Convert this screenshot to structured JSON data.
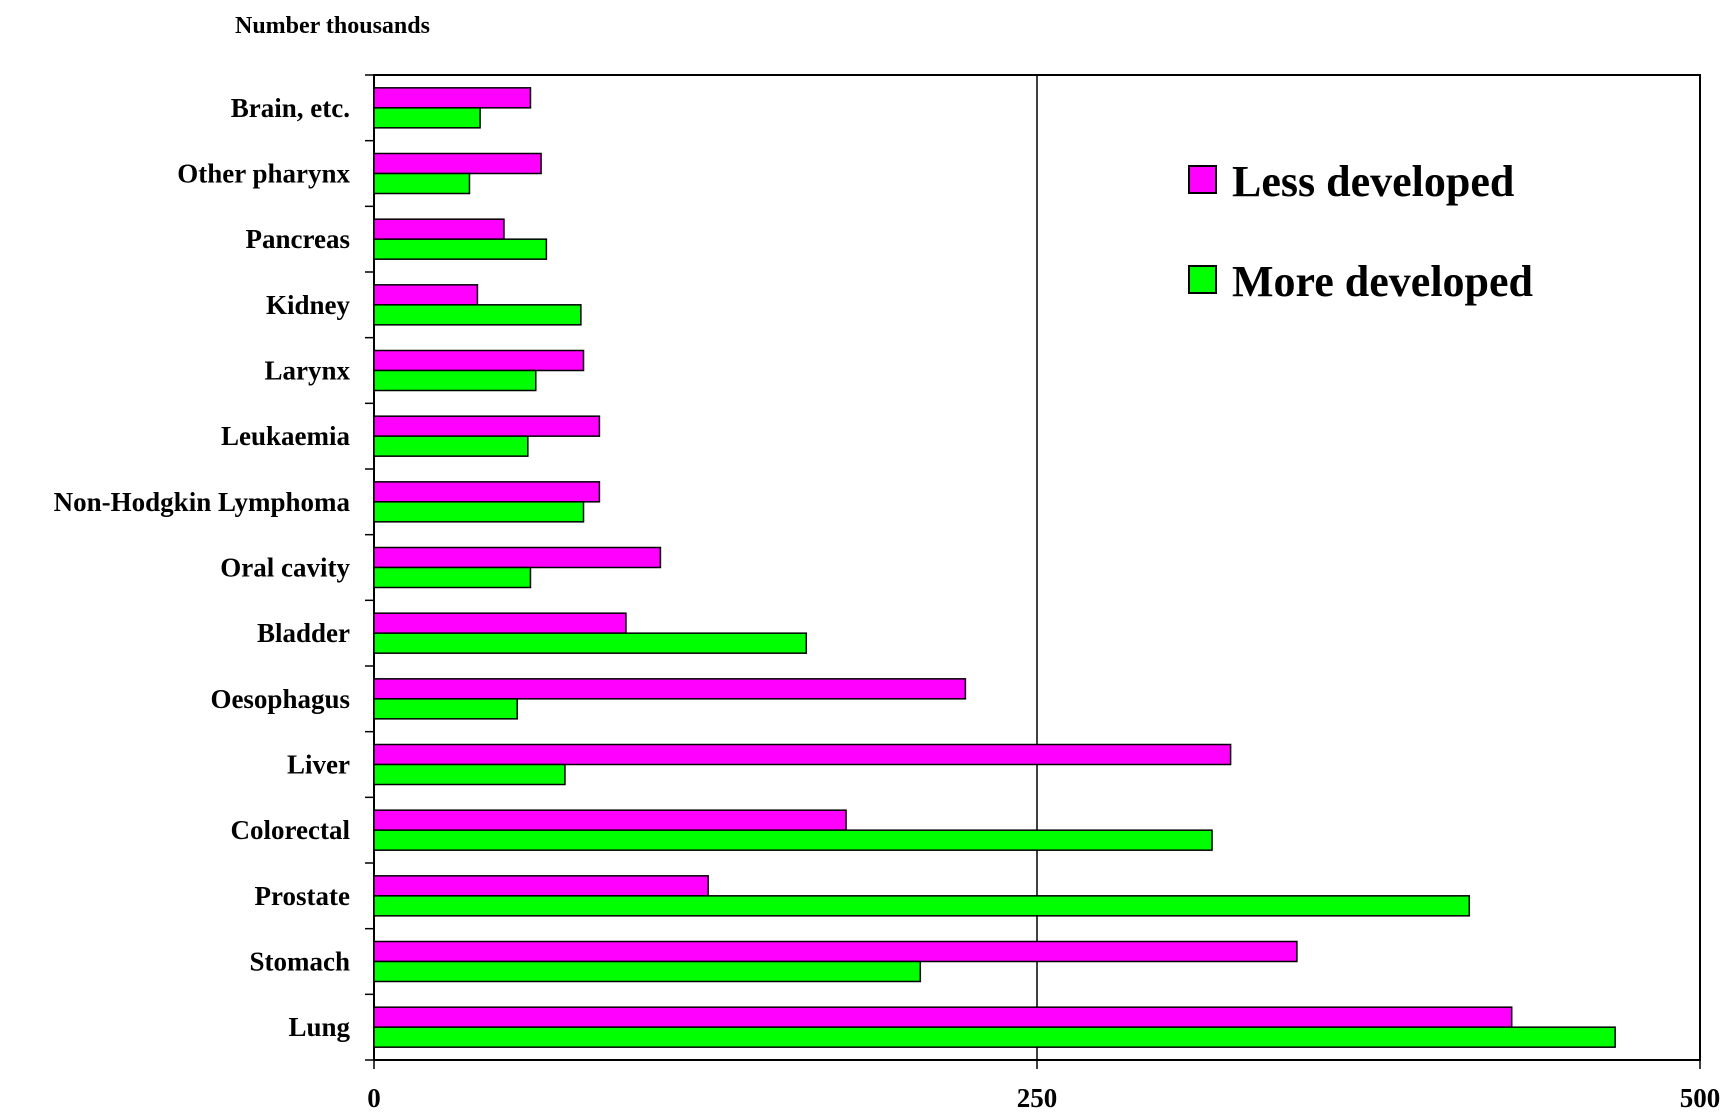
{
  "chart_data": {
    "type": "bar",
    "orientation": "horizontal",
    "unit_label": "Number thousands",
    "categories": [
      "Brain, etc.",
      "Other pharynx",
      "Pancreas",
      "Kidney",
      "Larynx",
      "Leukaemia",
      "Non-Hodgkin Lymphoma",
      "Oral cavity",
      "Bladder",
      "Oesophagus",
      "Liver",
      "Colorectal",
      "Prostate",
      "Stomach",
      "Lung"
    ],
    "series": [
      {
        "name": "Less developed",
        "color": "#ff00ff",
        "values": [
          59,
          63,
          49,
          39,
          79,
          85,
          85,
          108,
          95,
          223,
          323,
          178,
          126,
          348,
          429
        ]
      },
      {
        "name": "More developed",
        "color": "#00ff00",
        "values": [
          40,
          36,
          65,
          78,
          61,
          58,
          79,
          59,
          163,
          54,
          72,
          316,
          413,
          206,
          468
        ]
      }
    ],
    "xlim": [
      0,
      500
    ],
    "xticks": [
      "0",
      "250",
      "500"
    ],
    "grid": "vertical line at 250",
    "legend_position": "top-right"
  }
}
